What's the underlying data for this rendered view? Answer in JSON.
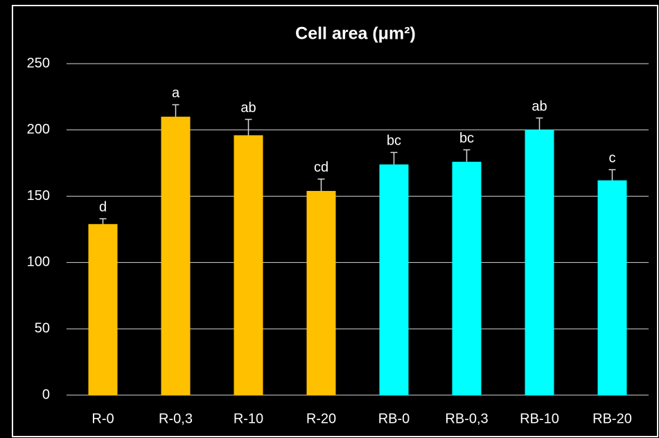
{
  "chart_data": {
    "type": "bar",
    "title": "Cell area (μm²)",
    "categories": [
      "R-0",
      "R-0,3",
      "R-10",
      "R-20",
      "RB-0",
      "RB-0,3",
      "RB-10",
      "RB-20"
    ],
    "values": [
      129,
      210,
      196,
      154,
      174,
      176,
      200,
      162
    ],
    "errors": [
      4,
      9,
      12,
      9,
      9,
      9,
      9,
      8
    ],
    "annotations": [
      "d",
      "a",
      "ab",
      "cd",
      "bc",
      "bc",
      "ab",
      "c"
    ],
    "colors": [
      "#ffc000",
      "#ffc000",
      "#ffc000",
      "#ffc000",
      "#00ffff",
      "#00ffff",
      "#00ffff",
      "#00ffff"
    ],
    "ylim": [
      0,
      250
    ],
    "yticks": [
      0,
      50,
      100,
      150,
      200,
      250
    ],
    "grid": true
  }
}
